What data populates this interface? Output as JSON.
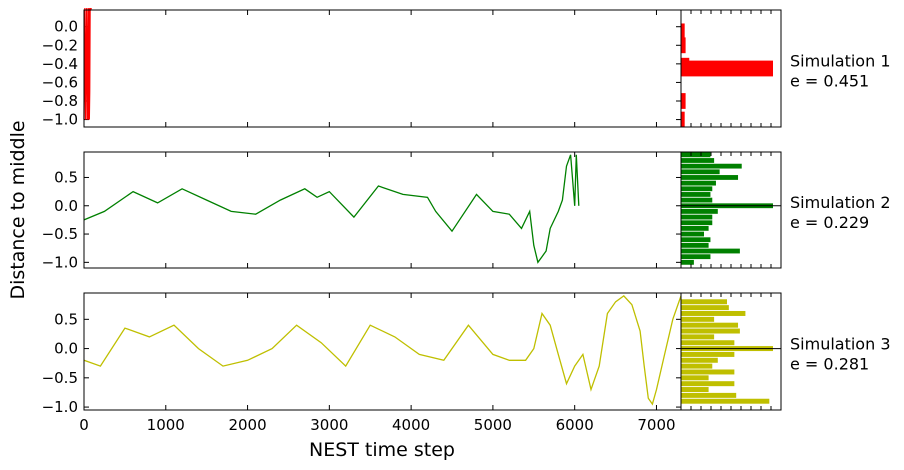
{
  "chart_data": {
    "type": "line",
    "xlabel": "NEST time step",
    "ylabel": "Distance to middle",
    "xlim": [
      0,
      7300
    ],
    "x_ticks": [
      "0",
      "1000",
      "2000",
      "3000",
      "4000",
      "5000",
      "6000",
      "7000"
    ],
    "panels": [
      {
        "name": "Simulation 1",
        "annotation": [
          "Simulation 1",
          "e = 0.451"
        ],
        "color": "#ff0000",
        "ylim": [
          -1.08,
          0.18
        ],
        "y_ticks": [
          -1.0,
          -0.8,
          -0.6,
          -0.4,
          -0.2,
          0.0
        ],
        "y_tick_labels": [
          "−1.0",
          "−0.8",
          "−0.6",
          "−0.4",
          "−0.2",
          "0.0"
        ],
        "series": {
          "x": [
            0,
            10,
            20,
            30,
            40,
            50,
            55,
            60,
            65,
            70,
            75,
            80,
            90
          ],
          "y": [
            -1.0,
            0.2,
            -1.0,
            0.2,
            -1.0,
            0.2,
            -1.0,
            0.2,
            -1.0,
            -0.7,
            0.2,
            0.18,
            0.2
          ]
        },
        "histogram": {
          "bin_centers": [
            -1.0,
            -0.8,
            -0.45,
            -0.42,
            -0.2,
            -0.05
          ],
          "counts": [
            0.4,
            0.5,
            10,
            0.9,
            0.5,
            0.4
          ]
        }
      },
      {
        "name": "Simulation 2",
        "annotation": [
          "Simulation 2",
          "e = 0.229"
        ],
        "color": "#008000",
        "ylim": [
          -1.1,
          0.95
        ],
        "y_ticks": [
          -1.0,
          -0.5,
          0.0,
          0.5
        ],
        "y_tick_labels": [
          "−1.0",
          "−0.5",
          "0.0",
          "0.5"
        ],
        "series": {
          "x": [
            0,
            250,
            600,
            900,
            1200,
            1500,
            1800,
            2100,
            2400,
            2700,
            2850,
            3000,
            3300,
            3600,
            3900,
            4200,
            4300,
            4500,
            4800,
            5000,
            5200,
            5350,
            5450,
            5500,
            5550,
            5600,
            5650,
            5700,
            5800,
            5850,
            5900,
            5950,
            6000,
            6020,
            6050
          ],
          "y": [
            -0.25,
            -0.1,
            0.25,
            0.05,
            0.3,
            0.1,
            -0.1,
            -0.15,
            0.1,
            0.3,
            0.15,
            0.25,
            -0.2,
            0.35,
            0.2,
            0.15,
            -0.1,
            -0.45,
            0.2,
            -0.1,
            -0.15,
            -0.4,
            -0.1,
            -0.7,
            -1.0,
            -0.9,
            -0.8,
            -0.4,
            -0.1,
            0.1,
            0.7,
            0.9,
            0.0,
            0.9,
            0.0
          ]
        },
        "histogram": {
          "bin_centers": [
            -1.0,
            -0.9,
            -0.8,
            -0.7,
            -0.6,
            -0.5,
            -0.4,
            -0.3,
            -0.2,
            -0.1,
            0.0,
            0.1,
            0.2,
            0.3,
            0.4,
            0.5,
            0.6,
            0.7,
            0.8,
            0.9
          ],
          "counts": [
            1.4,
            3.2,
            6.4,
            3.0,
            3.2,
            2.5,
            3.0,
            3.4,
            3.4,
            4.0,
            10.0,
            3.4,
            3.2,
            3.4,
            3.8,
            6.2,
            4.2,
            6.6,
            3.6,
            3.2
          ]
        }
      },
      {
        "name": "Simulation 3",
        "annotation": [
          "Simulation 3",
          "e = 0.281"
        ],
        "color": "#bfbf00",
        "ylim": [
          -1.05,
          0.95
        ],
        "y_ticks": [
          -1.0,
          -0.5,
          0.0,
          0.5
        ],
        "y_tick_labels": [
          "−1.0",
          "−0.5",
          "0.0",
          "0.5"
        ],
        "series": {
          "x": [
            0,
            200,
            500,
            800,
            1100,
            1400,
            1700,
            2000,
            2300,
            2600,
            2900,
            3200,
            3500,
            3800,
            4100,
            4400,
            4700,
            5000,
            5200,
            5400,
            5500,
            5600,
            5700,
            5800,
            5900,
            6000,
            6100,
            6200,
            6300,
            6400,
            6500,
            6600,
            6700,
            6800,
            6850,
            6900,
            6950,
            7000,
            7100,
            7200,
            7300
          ],
          "y": [
            -0.2,
            -0.3,
            0.35,
            0.2,
            0.4,
            0.0,
            -0.3,
            -0.2,
            0.0,
            0.4,
            0.1,
            -0.3,
            0.4,
            0.2,
            -0.1,
            -0.2,
            0.4,
            -0.1,
            -0.2,
            -0.2,
            0.0,
            0.6,
            0.4,
            -0.1,
            -0.6,
            -0.3,
            -0.1,
            -0.7,
            -0.3,
            0.6,
            0.8,
            0.9,
            0.75,
            0.3,
            -0.3,
            -0.85,
            -0.95,
            -0.7,
            -0.1,
            0.5,
            0.9
          ]
        },
        "histogram": {
          "bin_centers": [
            -0.9,
            -0.8,
            -0.7,
            -0.6,
            -0.5,
            -0.4,
            -0.3,
            -0.2,
            -0.1,
            0.0,
            0.1,
            0.2,
            0.3,
            0.4,
            0.5,
            0.6,
            0.7,
            0.8
          ],
          "counts": [
            9.6,
            6.0,
            3.0,
            5.8,
            3.0,
            5.8,
            3.4,
            4.0,
            5.8,
            10.0,
            5.8,
            3.6,
            6.4,
            6.2,
            3.6,
            7.0,
            5.2,
            5.0
          ]
        }
      }
    ]
  }
}
